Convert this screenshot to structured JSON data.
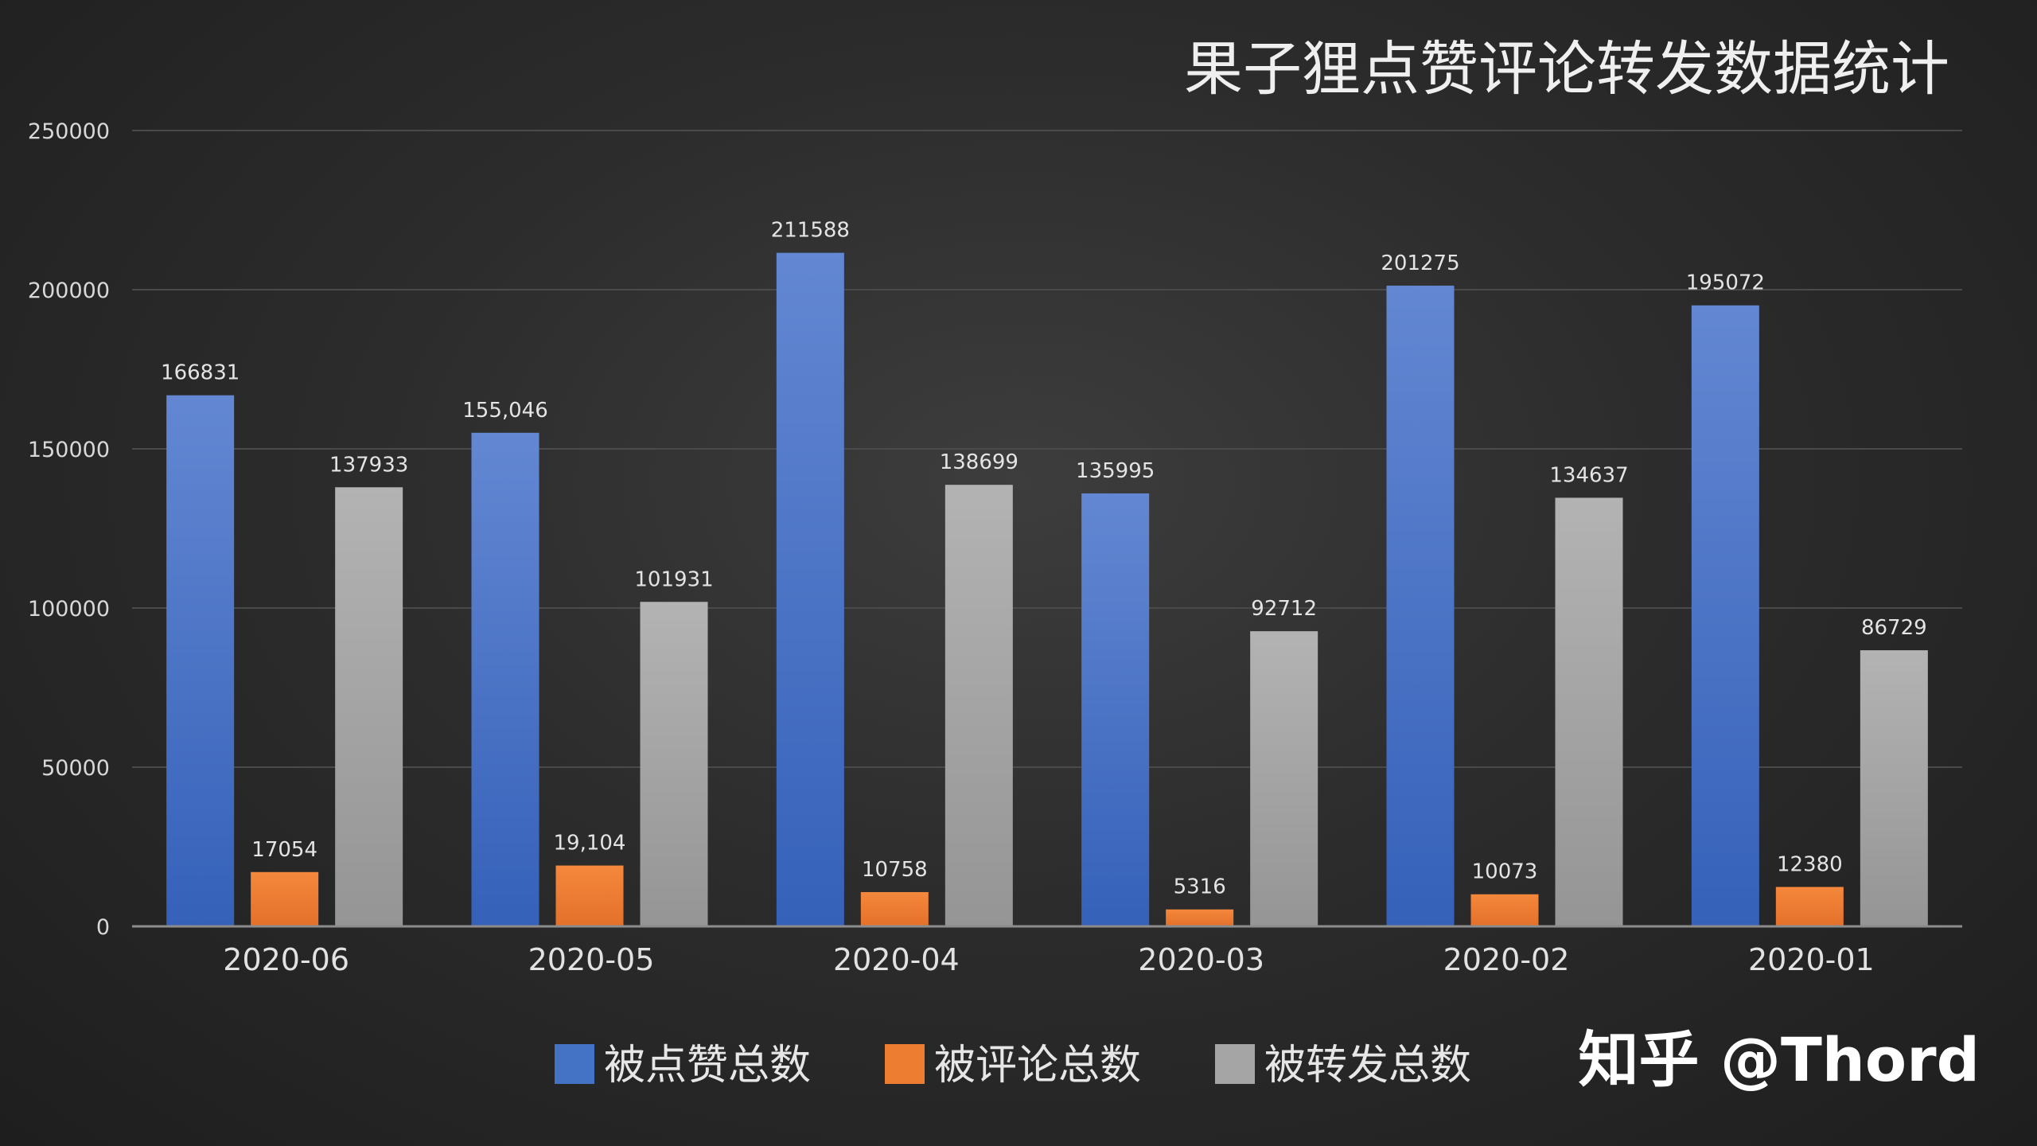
{
  "chart_data": {
    "type": "bar",
    "title": "果子狸点赞评论转发数据统计",
    "categories": [
      "2020-06",
      "2020-05",
      "2020-04",
      "2020-03",
      "2020-02",
      "2020-01"
    ],
    "series": [
      {
        "name": "被点赞总数",
        "color": "#4472c4",
        "values": [
          166831,
          155046,
          211588,
          135995,
          201275,
          195072
        ],
        "labels": [
          "166831",
          "155,046",
          "211588",
          "135995",
          "201275",
          "195072"
        ]
      },
      {
        "name": "被评论总数",
        "color": "#ed7d31",
        "values": [
          17054,
          19104,
          10758,
          5316,
          10073,
          12380
        ],
        "labels": [
          "17054",
          "19,104",
          "10758",
          "5316",
          "10073",
          "12380"
        ]
      },
      {
        "name": "被转发总数",
        "color": "#a5a5a5",
        "values": [
          137933,
          101931,
          138699,
          92712,
          134637,
          86729
        ],
        "labels": [
          "137933",
          "101931",
          "138699",
          "92712",
          "134637",
          "86729"
        ]
      }
    ],
    "yticks": [
      0,
      50000,
      100000,
      150000,
      200000,
      250000
    ],
    "ylim": [
      0,
      250000
    ],
    "grid": true,
    "legend": "bottom"
  },
  "watermark": "知乎 @Thord"
}
